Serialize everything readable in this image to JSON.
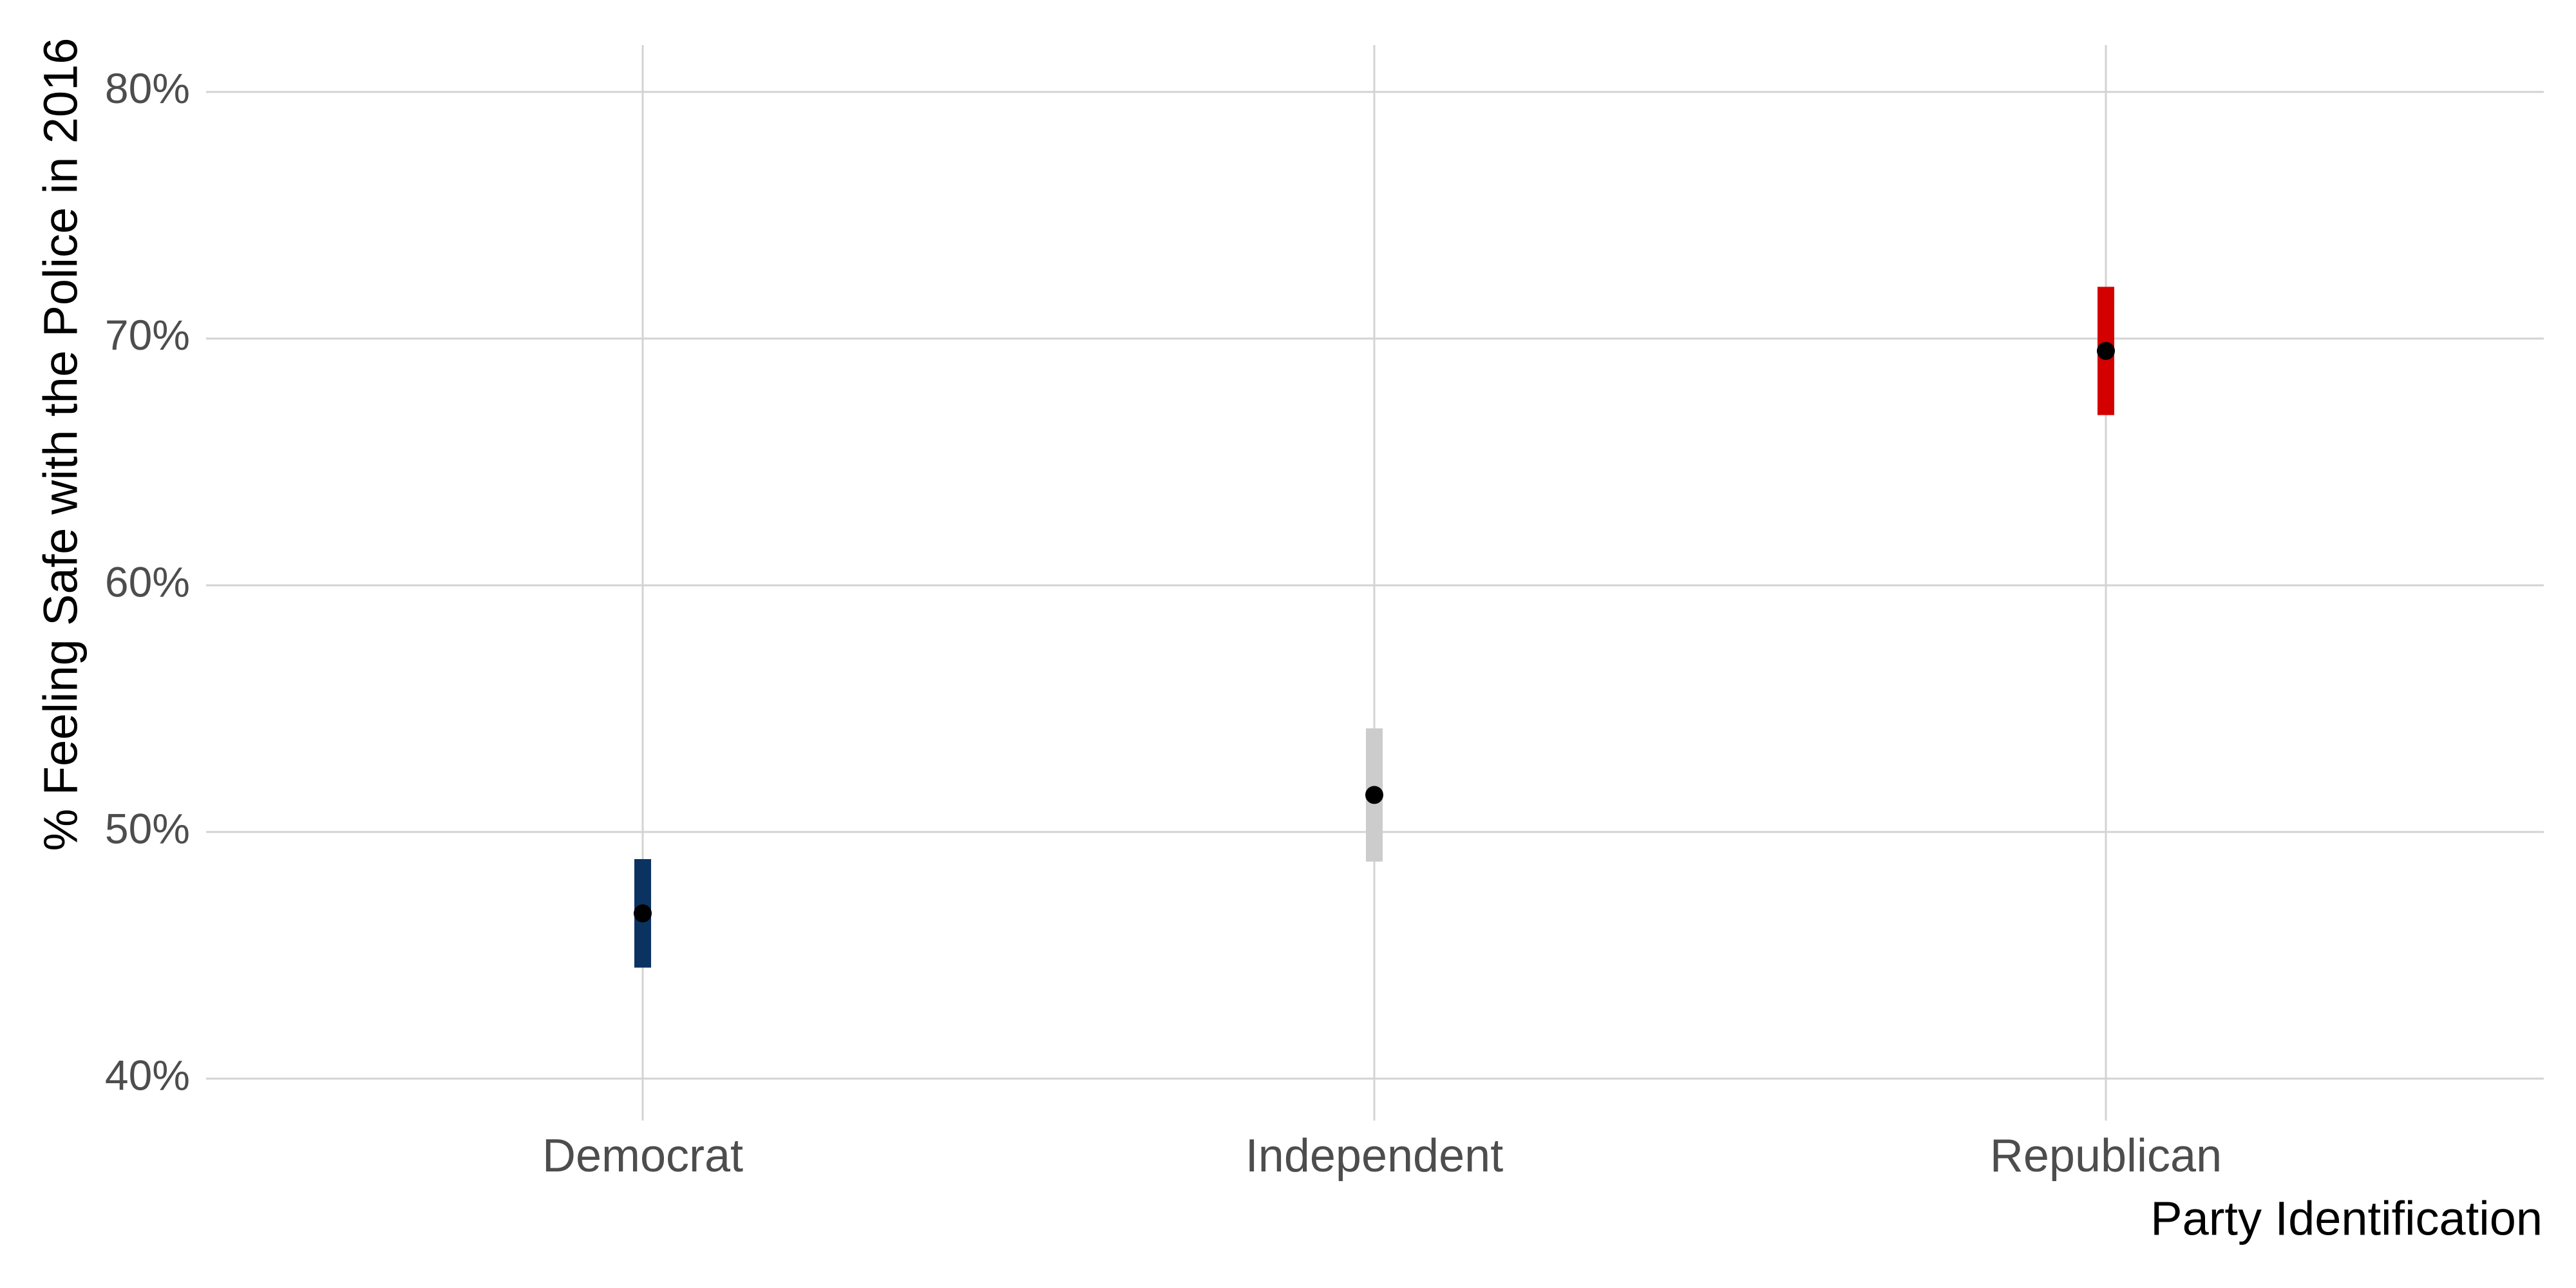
{
  "chart_data": {
    "type": "scatter",
    "title": "",
    "xlabel": "Party Identification",
    "ylabel": "% Feeling Safe with the Police in 2016",
    "categories": [
      "Democrat",
      "Independent",
      "Republican"
    ],
    "series": [
      {
        "values": [
          46.7,
          51.5,
          69.5
        ],
        "ci_low": [
          44.5,
          48.8,
          66.9
        ],
        "ci_high": [
          48.9,
          54.2,
          72.1
        ],
        "colors": [
          "#0b3362",
          "#cccccc",
          "#d40000"
        ]
      }
    ],
    "ylim": [
      38.3,
      81.9
    ],
    "y_ticks": [
      40,
      50,
      60,
      70,
      80
    ],
    "y_tick_labels": [
      "40%",
      "50%",
      "60%",
      "70%",
      "80%"
    ],
    "grid": true,
    "legend": "none",
    "point_color": "#000000"
  }
}
